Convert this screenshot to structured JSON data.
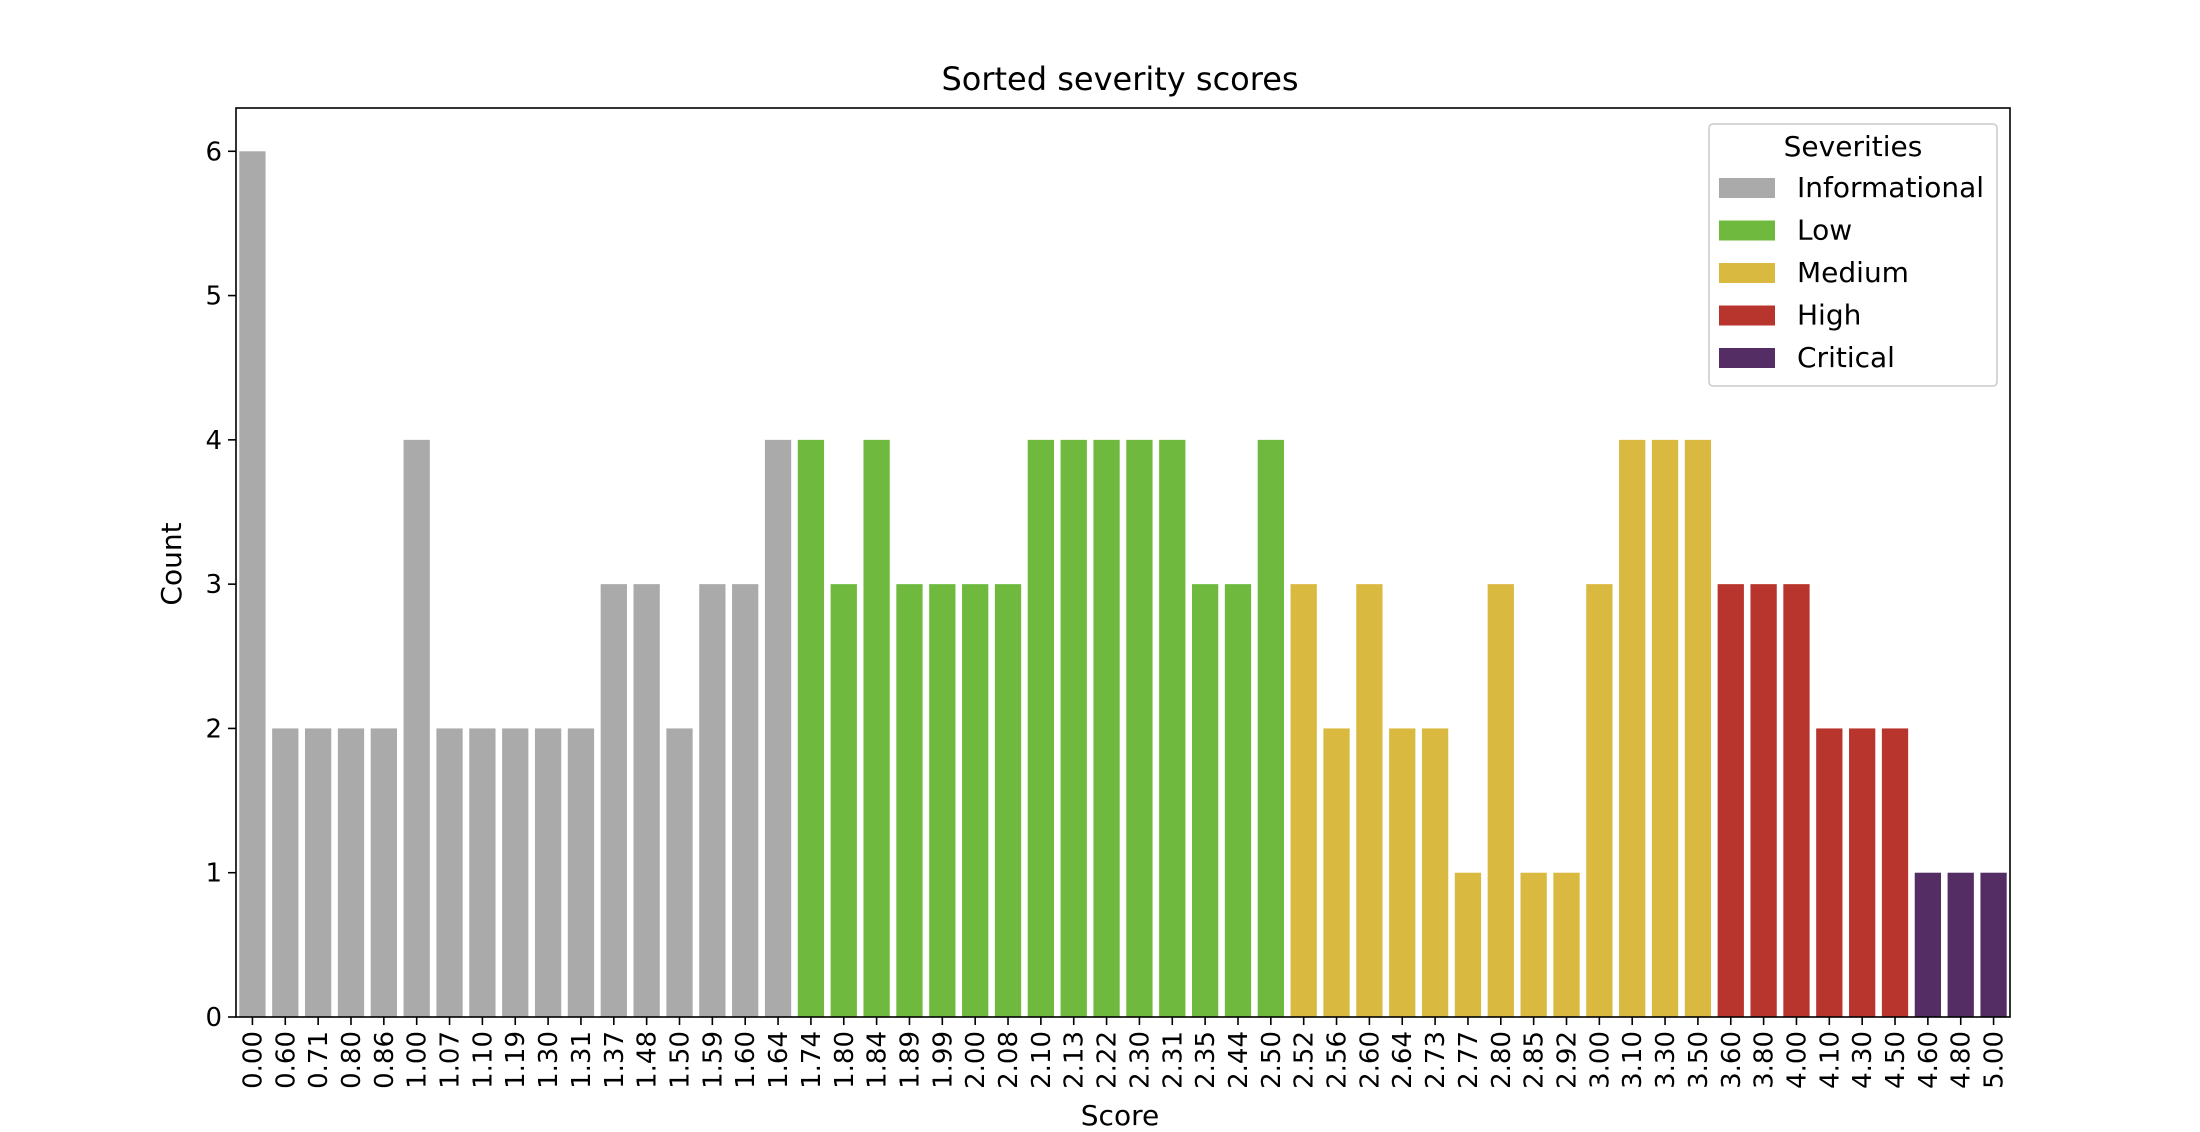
{
  "chart_data": {
    "type": "bar",
    "title": "Sorted severity scores",
    "xlabel": "Score",
    "ylabel": "Count",
    "ylim": [
      0,
      6.3
    ],
    "yticks": [
      "0",
      "1",
      "2",
      "3",
      "4",
      "5",
      "6"
    ],
    "categories": [
      "0.00",
      "0.60",
      "0.71",
      "0.80",
      "0.86",
      "1.00",
      "1.07",
      "1.10",
      "1.19",
      "1.30",
      "1.31",
      "1.37",
      "1.48",
      "1.50",
      "1.59",
      "1.60",
      "1.64",
      "1.74",
      "1.80",
      "1.84",
      "1.89",
      "1.99",
      "2.00",
      "2.08",
      "2.10",
      "2.13",
      "2.22",
      "2.30",
      "2.31",
      "2.35",
      "2.44",
      "2.50",
      "2.52",
      "2.56",
      "2.60",
      "2.64",
      "2.73",
      "2.77",
      "2.80",
      "2.85",
      "2.92",
      "3.00",
      "3.10",
      "3.30",
      "3.50",
      "3.60",
      "3.80",
      "4.00",
      "4.10",
      "4.30",
      "4.50",
      "4.60",
      "4.80",
      "5.00"
    ],
    "values": [
      6,
      2,
      2,
      2,
      2,
      4,
      2,
      2,
      2,
      2,
      2,
      3,
      3,
      2,
      3,
      3,
      4,
      4,
      3,
      4,
      3,
      3,
      3,
      3,
      4,
      4,
      4,
      4,
      4,
      3,
      3,
      4,
      3,
      2,
      3,
      2,
      2,
      1,
      3,
      1,
      1,
      3,
      4,
      4,
      4,
      3,
      3,
      3,
      2,
      2,
      2,
      1,
      1,
      1
    ],
    "severity": [
      "Informational",
      "Informational",
      "Informational",
      "Informational",
      "Informational",
      "Informational",
      "Informational",
      "Informational",
      "Informational",
      "Informational",
      "Informational",
      "Informational",
      "Informational",
      "Informational",
      "Informational",
      "Informational",
      "Informational",
      "Low",
      "Low",
      "Low",
      "Low",
      "Low",
      "Low",
      "Low",
      "Low",
      "Low",
      "Low",
      "Low",
      "Low",
      "Low",
      "Low",
      "Low",
      "Medium",
      "Medium",
      "Medium",
      "Medium",
      "Medium",
      "Medium",
      "Medium",
      "Medium",
      "Medium",
      "Medium",
      "Medium",
      "Medium",
      "Medium",
      "High",
      "High",
      "High",
      "High",
      "High",
      "High",
      "Critical",
      "Critical",
      "Critical"
    ],
    "legend": {
      "title": "Severities",
      "placement": "top-right",
      "entries": [
        {
          "label": "Informational",
          "color": "#aaaaaa"
        },
        {
          "label": "Low",
          "color": "#6fba3e"
        },
        {
          "label": "Medium",
          "color": "#dab941"
        },
        {
          "label": "High",
          "color": "#b8352d"
        },
        {
          "label": "Critical",
          "color": "#552d65"
        }
      ]
    },
    "grid": false
  }
}
